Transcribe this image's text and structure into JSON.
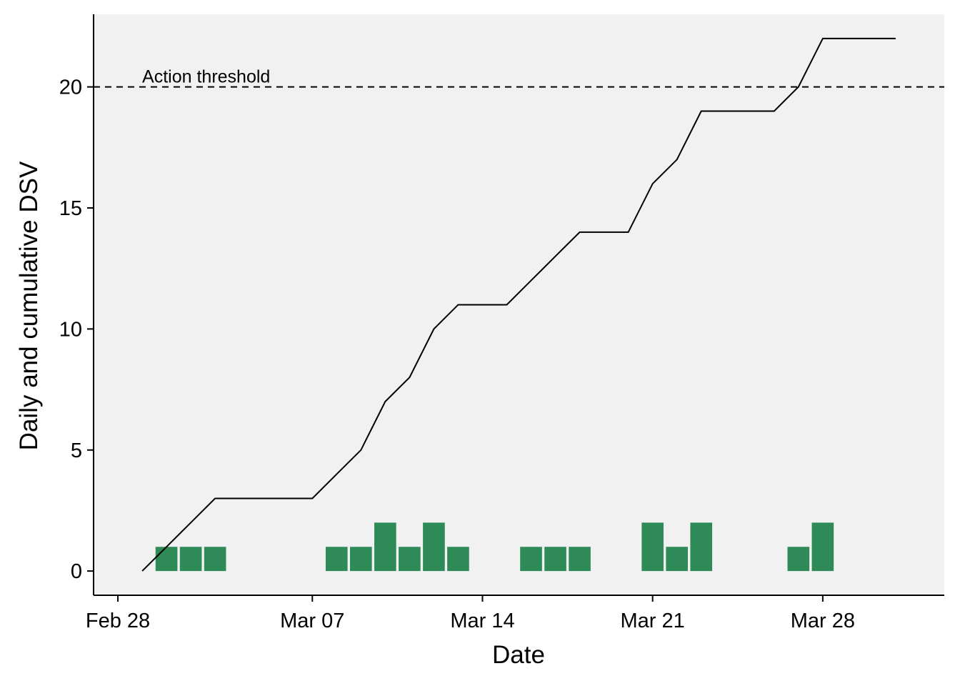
{
  "chart_data": {
    "type": "bar",
    "title": "",
    "xlabel": "Date",
    "ylabel": "Daily and cumulative DSV",
    "xlim": [
      "2024-02-27",
      "2024-04-02"
    ],
    "ylim": [
      -1,
      23
    ],
    "x_ticks": [
      {
        "date": "2024-02-28",
        "label": "Feb 28"
      },
      {
        "date": "2024-03-07",
        "label": "Mar 07"
      },
      {
        "date": "2024-03-14",
        "label": "Mar 14"
      },
      {
        "date": "2024-03-21",
        "label": "Mar 21"
      },
      {
        "date": "2024-03-28",
        "label": "Mar 28"
      }
    ],
    "y_ticks": [
      0,
      5,
      10,
      15,
      20
    ],
    "grid": false,
    "background": "#f1f1f1",
    "series": [
      {
        "name": "",
        "type": "bar",
        "color": "#2e8b57",
        "points": [
          {
            "x": "2024-03-01",
            "y": 1
          },
          {
            "x": "2024-03-02",
            "y": 1
          },
          {
            "x": "2024-03-03",
            "y": 1
          },
          {
            "x": "2024-03-08",
            "y": 1
          },
          {
            "x": "2024-03-09",
            "y": 1
          },
          {
            "x": "2024-03-10",
            "y": 2
          },
          {
            "x": "2024-03-11",
            "y": 1
          },
          {
            "x": "2024-03-12",
            "y": 2
          },
          {
            "x": "2024-03-13",
            "y": 1
          },
          {
            "x": "2024-03-16",
            "y": 1
          },
          {
            "x": "2024-03-17",
            "y": 1
          },
          {
            "x": "2024-03-18",
            "y": 1
          },
          {
            "x": "2024-03-21",
            "y": 2
          },
          {
            "x": "2024-03-22",
            "y": 1
          },
          {
            "x": "2024-03-23",
            "y": 2
          },
          {
            "x": "2024-03-27",
            "y": 1
          },
          {
            "x": "2024-03-28",
            "y": 2
          }
        ]
      },
      {
        "name": "",
        "type": "line",
        "color": "#000000",
        "points": [
          {
            "x": "2024-02-29",
            "y": 0
          },
          {
            "x": "2024-03-01",
            "y": 1
          },
          {
            "x": "2024-03-02",
            "y": 2
          },
          {
            "x": "2024-03-03",
            "y": 3
          },
          {
            "x": "2024-03-04",
            "y": 3
          },
          {
            "x": "2024-03-05",
            "y": 3
          },
          {
            "x": "2024-03-06",
            "y": 3
          },
          {
            "x": "2024-03-07",
            "y": 3
          },
          {
            "x": "2024-03-08",
            "y": 4
          },
          {
            "x": "2024-03-09",
            "y": 5
          },
          {
            "x": "2024-03-10",
            "y": 7
          },
          {
            "x": "2024-03-11",
            "y": 8
          },
          {
            "x": "2024-03-12",
            "y": 10
          },
          {
            "x": "2024-03-13",
            "y": 11
          },
          {
            "x": "2024-03-14",
            "y": 11
          },
          {
            "x": "2024-03-15",
            "y": 11
          },
          {
            "x": "2024-03-16",
            "y": 12
          },
          {
            "x": "2024-03-17",
            "y": 13
          },
          {
            "x": "2024-03-18",
            "y": 14
          },
          {
            "x": "2024-03-19",
            "y": 14
          },
          {
            "x": "2024-03-20",
            "y": 14
          },
          {
            "x": "2024-03-21",
            "y": 16
          },
          {
            "x": "2024-03-22",
            "y": 17
          },
          {
            "x": "2024-03-23",
            "y": 19
          },
          {
            "x": "2024-03-24",
            "y": 19
          },
          {
            "x": "2024-03-25",
            "y": 19
          },
          {
            "x": "2024-03-26",
            "y": 19
          },
          {
            "x": "2024-03-27",
            "y": 20
          },
          {
            "x": "2024-03-28",
            "y": 22
          },
          {
            "x": "2024-03-29",
            "y": 22
          },
          {
            "x": "2024-03-30",
            "y": 22
          },
          {
            "x": "2024-03-31",
            "y": 22
          }
        ]
      }
    ],
    "reference_lines": [
      {
        "y": 20,
        "style": "dashed",
        "color": "#000000",
        "label": "Action threshold"
      }
    ]
  }
}
